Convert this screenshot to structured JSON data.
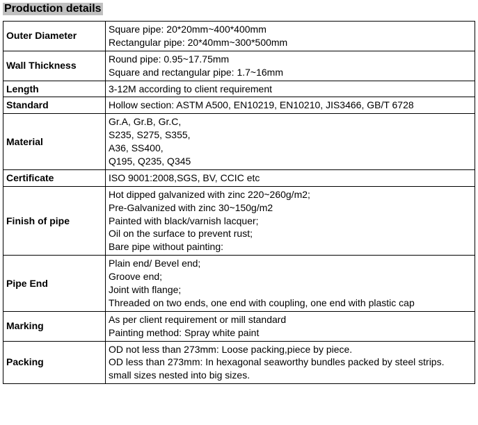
{
  "title": "Production details",
  "rows": [
    {
      "label": "Outer Diameter",
      "lines": [
        "Square pipe: 20*20mm~400*400mm",
        "Rectangular pipe: 20*40mm~300*500mm"
      ]
    },
    {
      "label": "Wall Thickness",
      "lines": [
        "Round pipe: 0.95~17.75mm",
        "Square and rectangular pipe: 1.7~16mm"
      ]
    },
    {
      "label": "Length",
      "lines": [
        "3-12M according to client requirement"
      ]
    },
    {
      "label": "Standard",
      "lines": [
        "Hollow section: ASTM A500, EN10219, EN10210, JIS3466, GB/T 6728"
      ]
    },
    {
      "label": "Material",
      "lines": [
        "Gr.A, Gr.B, Gr.C,",
        "S235, S275, S355,",
        "A36, SS400,",
        "Q195, Q235, Q345"
      ]
    },
    {
      "label": "Certificate",
      "lines": [
        "ISO 9001:2008,SGS, BV, CCIC etc"
      ]
    },
    {
      "label": "Finish of pipe",
      "lines": [
        "Hot dipped galvanized with zinc 220~260g/m2;",
        "Pre-Galvanized with zinc 30~150g/m2",
        "Painted with black/varnish lacquer;",
        "Oil on the surface to prevent rust;",
        "Bare pipe without painting:"
      ]
    },
    {
      "label": "Pipe End",
      "lines": [
        "Plain end/ Bevel end;",
        "Groove end;",
        "Joint with flange;",
        "Threaded on two ends, one end with coupling, one end with plastic cap"
      ]
    },
    {
      "label": "Marking",
      "lines": [
        "As per client requirement or mill standard",
        "Painting method: Spray white paint"
      ]
    },
    {
      "label": "Packing",
      "lines": [
        "OD not less than 273mm: Loose packing,piece by piece.",
        "OD less than 273mm: In hexagonal seaworthy bundles packed by steel strips.",
        "small sizes nested into big sizes."
      ]
    }
  ]
}
